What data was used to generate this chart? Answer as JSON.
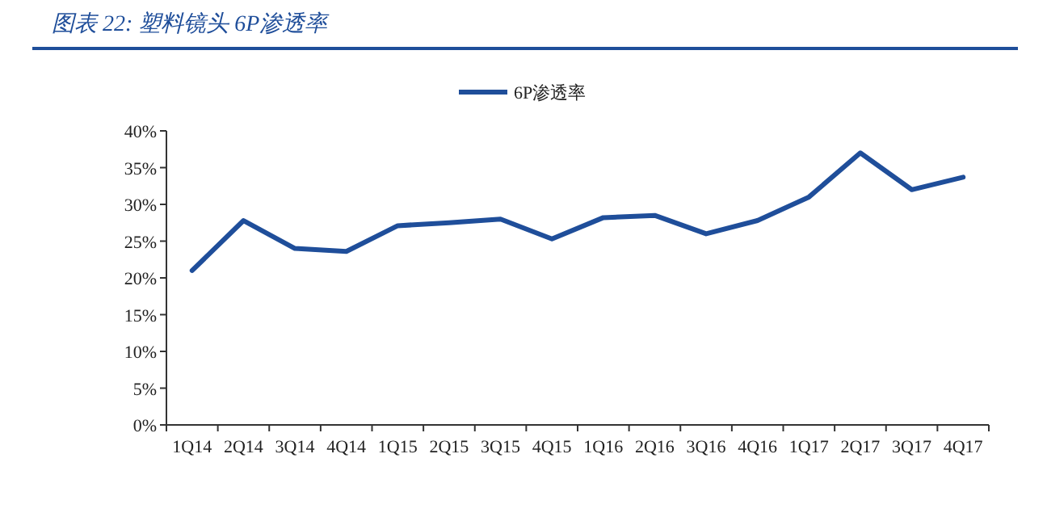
{
  "chart_data": {
    "type": "line",
    "title": "图表 22:  塑料镜头 6P渗透率",
    "categories": [
      "1Q14",
      "2Q14",
      "3Q14",
      "4Q14",
      "1Q15",
      "2Q15",
      "3Q15",
      "4Q15",
      "1Q16",
      "2Q16",
      "3Q16",
      "4Q16",
      "1Q17",
      "2Q17",
      "3Q17",
      "4Q17"
    ],
    "series": [
      {
        "name": "6P渗透率",
        "color": "#1f4e9a",
        "values": [
          21,
          27.8,
          24,
          23.6,
          27.1,
          27.5,
          28,
          25.3,
          28.2,
          28.5,
          26,
          27.8,
          31,
          37,
          32,
          33.7
        ]
      }
    ],
    "ylim": [
      0,
      40
    ],
    "yticks": [
      {
        "value": 0,
        "label": "0%"
      },
      {
        "value": 5,
        "label": "5%"
      },
      {
        "value": 10,
        "label": "10%"
      },
      {
        "value": 15,
        "label": "15%"
      },
      {
        "value": 20,
        "label": "20%"
      },
      {
        "value": 25,
        "label": "25%"
      },
      {
        "value": 30,
        "label": "30%"
      },
      {
        "value": 35,
        "label": "35%"
      },
      {
        "value": 40,
        "label": "40%"
      }
    ],
    "grid": false,
    "legend": "top",
    "marker": "none",
    "line_style": "solid"
  }
}
